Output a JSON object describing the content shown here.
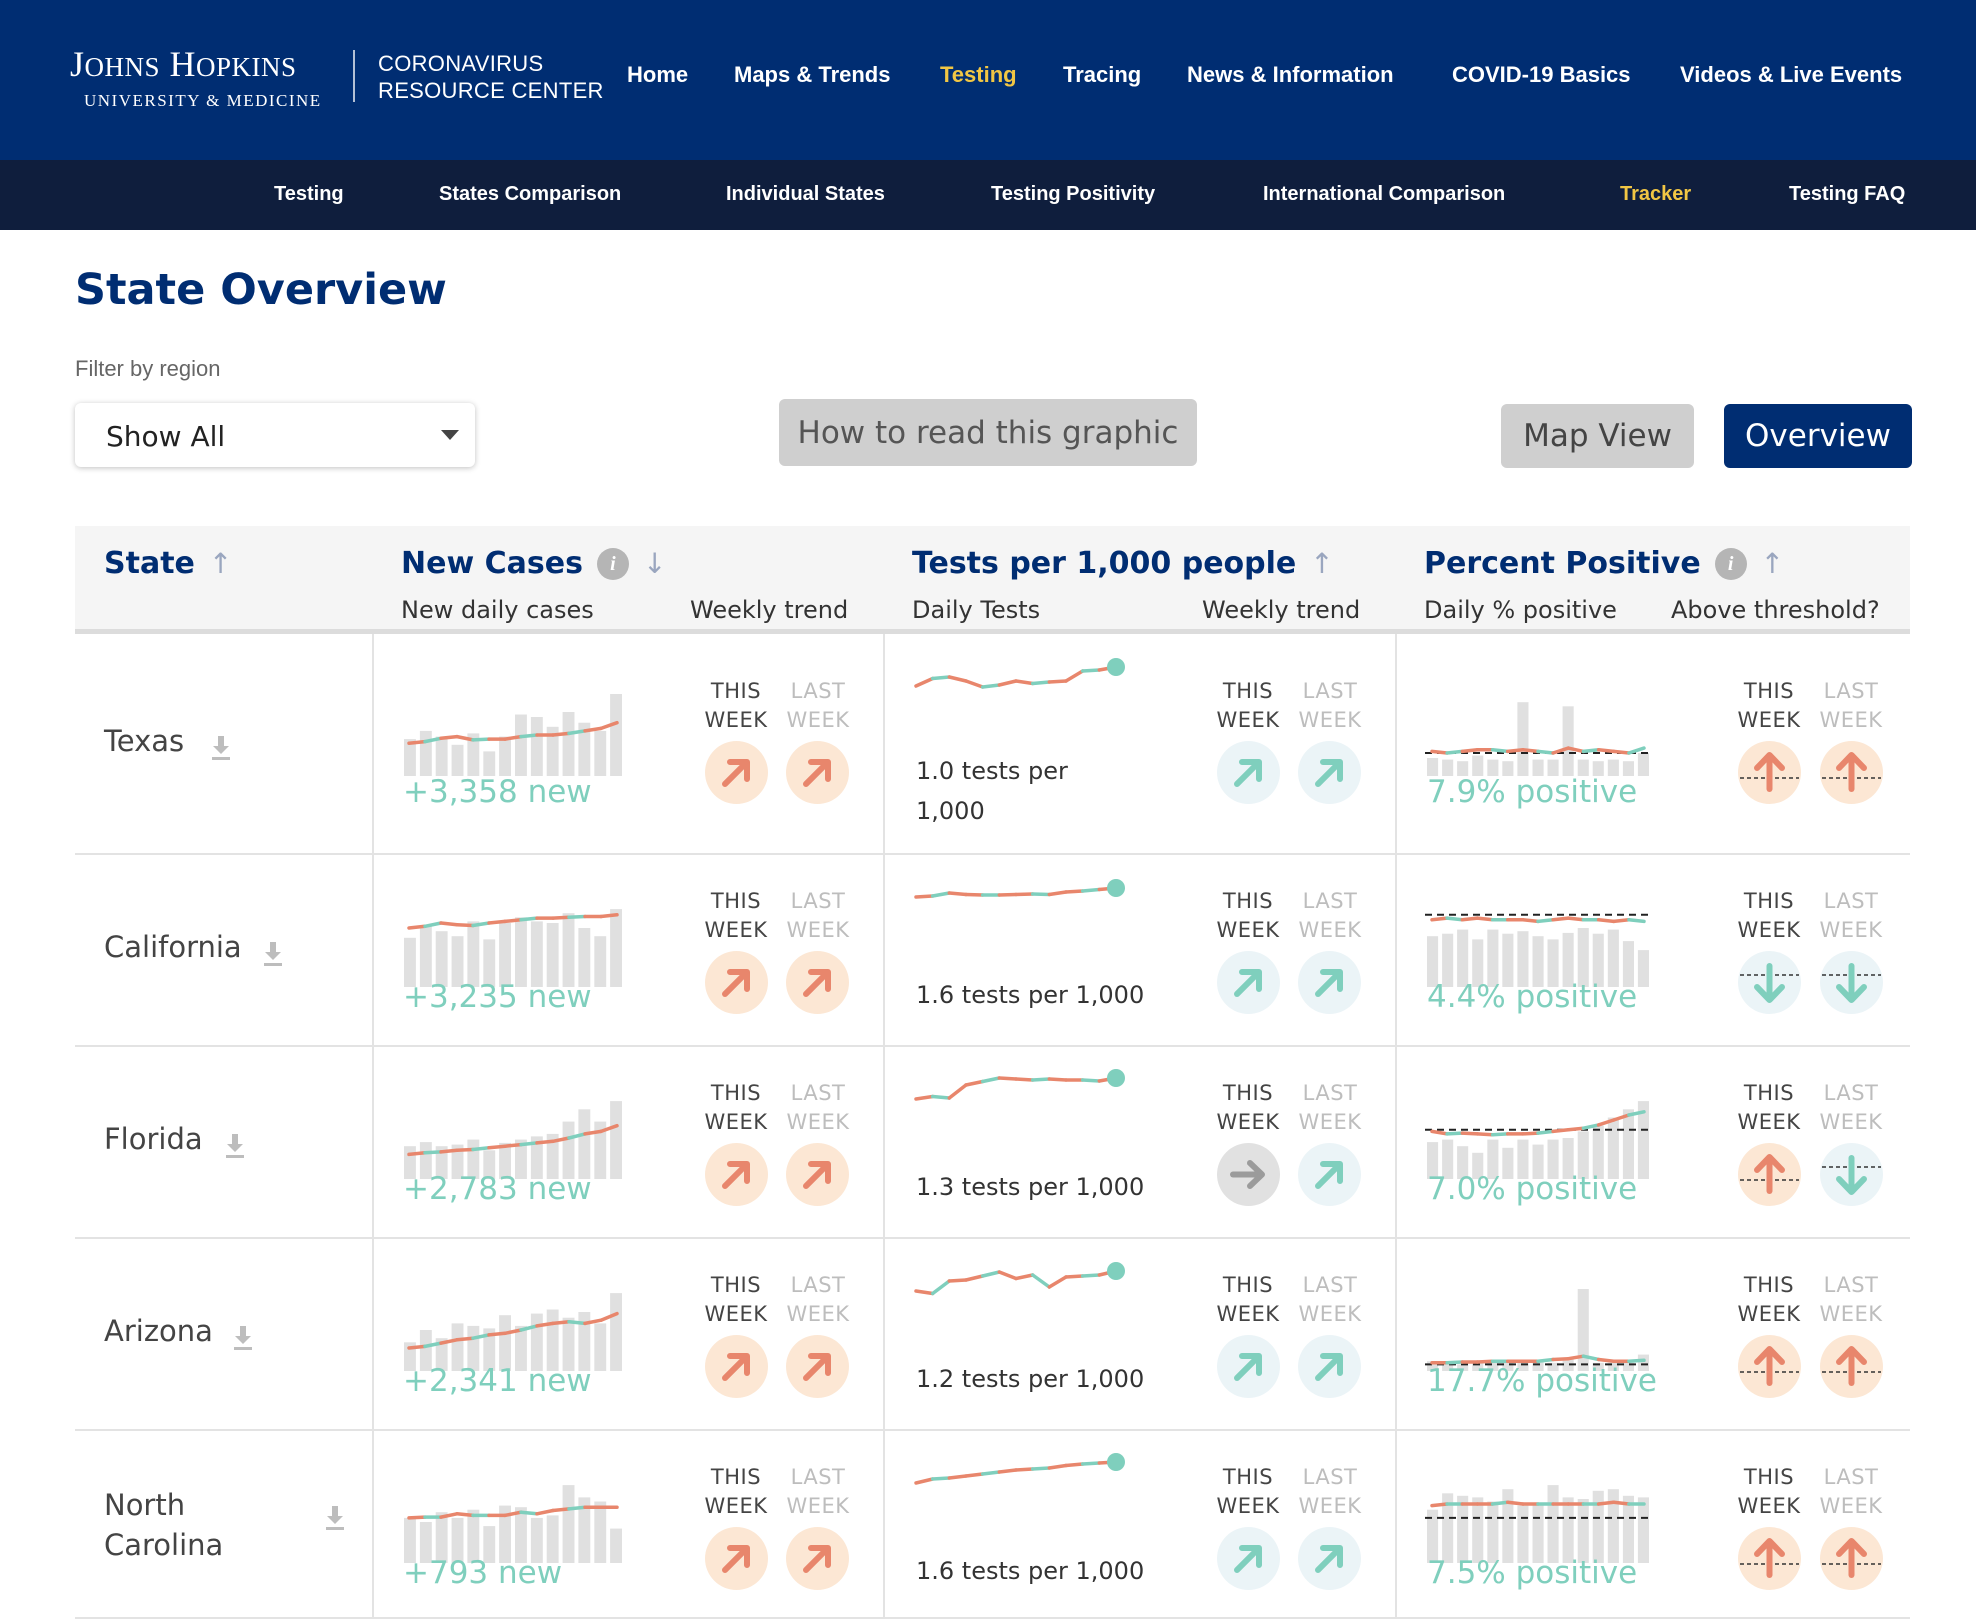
{
  "logo": {
    "line1": "Johns Hopkins",
    "line2": "UNIVERSITY & MEDICINE"
  },
  "resource_center": {
    "line1": "CORONAVIRUS",
    "line2": "RESOURCE CENTER"
  },
  "main_nav": [
    {
      "label": "Home",
      "active": false
    },
    {
      "label": "Maps & Trends",
      "active": false
    },
    {
      "label": "Testing",
      "active": true
    },
    {
      "label": "Tracing",
      "active": false
    },
    {
      "label": "News & Information",
      "active": false
    },
    {
      "label": "COVID-19 Basics",
      "active": false
    },
    {
      "label": "Videos & Live Events",
      "active": false
    }
  ],
  "sub_nav": [
    {
      "label": "Testing",
      "active": false
    },
    {
      "label": "States Comparison",
      "active": false
    },
    {
      "label": "Individual States",
      "active": false
    },
    {
      "label": "Testing Positivity",
      "active": false
    },
    {
      "label": "International Comparison",
      "active": false
    },
    {
      "label": "Tracker",
      "active": true
    },
    {
      "label": "Testing FAQ",
      "active": false
    }
  ],
  "page": {
    "title": "State Overview",
    "filter_label": "Filter by region",
    "filter_value": "Show All",
    "howto_label": "How to read this graphic",
    "map_view_label": "Map View",
    "overview_label": "Overview"
  },
  "table": {
    "headers": {
      "state": "State",
      "new_cases": "New Cases",
      "new_cases_sub": "New daily cases",
      "new_cases_trend": "Weekly trend",
      "tests": "Tests per 1,000 people",
      "tests_sub": "Daily Tests",
      "tests_trend": "Weekly trend",
      "positive": "Percent Positive",
      "positive_sub": "Daily % positive",
      "positive_trend": "Above threshold?"
    },
    "this_week": "THIS WEEK",
    "last_week": "LAST WEEK",
    "rows": [
      {
        "state": "Texas",
        "cases": "+3,358 new",
        "tests": "1.0 tests per 1,000",
        "positive": "7.9% positive",
        "case_badges": [
          "up-orange",
          "up-orange"
        ],
        "test_badges": [
          "up-teal",
          "up-teal"
        ],
        "pos_badges": [
          "above",
          "above"
        ]
      },
      {
        "state": "California",
        "cases": "+3,235 new",
        "tests": "1.6 tests per 1,000",
        "positive": "4.4% positive",
        "case_badges": [
          "up-orange",
          "up-orange"
        ],
        "test_badges": [
          "up-teal",
          "up-teal"
        ],
        "pos_badges": [
          "below",
          "below"
        ]
      },
      {
        "state": "Florida",
        "cases": "+2,783 new",
        "tests": "1.3 tests per 1,000",
        "positive": "7.0% positive",
        "case_badges": [
          "up-orange",
          "up-orange"
        ],
        "test_badges": [
          "flat-gray",
          "up-teal"
        ],
        "pos_badges": [
          "above",
          "below"
        ]
      },
      {
        "state": "Arizona",
        "cases": "+2,341 new",
        "tests": "1.2 tests per 1,000",
        "positive": "17.7% positive",
        "case_badges": [
          "up-orange",
          "up-orange"
        ],
        "test_badges": [
          "up-teal",
          "up-teal"
        ],
        "pos_badges": [
          "above",
          "above"
        ]
      },
      {
        "state": "North Carolina",
        "cases": "+793 new",
        "tests": "1.6 tests per 1,000",
        "positive": "7.5% positive",
        "case_badges": [
          "up-orange",
          "up-orange"
        ],
        "test_badges": [
          "up-teal",
          "up-teal"
        ],
        "pos_badges": [
          "above",
          "above"
        ]
      }
    ]
  },
  "sparklines": {
    "cases_bars": [
      [
        0.45,
        0.55,
        0.48,
        0.38,
        0.52,
        0.3,
        0.48,
        0.75,
        0.72,
        0.6,
        0.78,
        0.65,
        0.55,
        1.0
      ],
      [
        0.6,
        0.75,
        0.68,
        0.62,
        0.8,
        0.58,
        0.78,
        0.85,
        0.8,
        0.78,
        0.9,
        0.72,
        0.62,
        0.95
      ],
      [
        0.4,
        0.45,
        0.4,
        0.42,
        0.48,
        0.35,
        0.44,
        0.48,
        0.52,
        0.55,
        0.7,
        0.85,
        0.7,
        0.95
      ],
      [
        0.35,
        0.5,
        0.4,
        0.58,
        0.55,
        0.52,
        0.68,
        0.55,
        0.7,
        0.75,
        0.65,
        0.72,
        0.58,
        0.95
      ],
      [
        0.55,
        0.5,
        0.62,
        0.55,
        0.65,
        0.45,
        0.7,
        0.68,
        0.55,
        0.58,
        0.95,
        0.8,
        0.75,
        0.42
      ]
    ],
    "cases_line": [
      [
        0.4,
        0.42,
        0.46,
        0.48,
        0.44,
        0.45,
        0.45,
        0.48,
        0.5,
        0.5,
        0.52,
        0.55,
        0.58,
        0.65
      ],
      [
        0.72,
        0.74,
        0.78,
        0.76,
        0.75,
        0.78,
        0.8,
        0.82,
        0.84,
        0.84,
        0.85,
        0.86,
        0.86,
        0.88
      ],
      [
        0.3,
        0.32,
        0.33,
        0.35,
        0.36,
        0.38,
        0.4,
        0.42,
        0.44,
        0.46,
        0.5,
        0.55,
        0.58,
        0.65
      ],
      [
        0.28,
        0.3,
        0.34,
        0.38,
        0.4,
        0.44,
        0.46,
        0.5,
        0.55,
        0.58,
        0.6,
        0.58,
        0.62,
        0.7
      ],
      [
        0.55,
        0.56,
        0.56,
        0.6,
        0.58,
        0.58,
        0.58,
        0.62,
        0.6,
        0.64,
        0.66,
        0.68,
        0.68,
        0.68
      ]
    ],
    "tests_line": [
      [
        0.4,
        0.55,
        0.58,
        0.5,
        0.38,
        0.42,
        0.5,
        0.45,
        0.48,
        0.5,
        0.7,
        0.72,
        0.78
      ],
      [
        0.5,
        0.52,
        0.58,
        0.55,
        0.54,
        0.54,
        0.55,
        0.56,
        0.55,
        0.6,
        0.62,
        0.65,
        0.68
      ],
      [
        0.3,
        0.35,
        0.32,
        0.58,
        0.65,
        0.72,
        0.7,
        0.68,
        0.7,
        0.68,
        0.68,
        0.66,
        0.72
      ],
      [
        0.3,
        0.25,
        0.5,
        0.52,
        0.6,
        0.68,
        0.55,
        0.62,
        0.38,
        0.58,
        0.6,
        0.62,
        0.7
      ],
      [
        0.3,
        0.38,
        0.4,
        0.44,
        0.48,
        0.52,
        0.56,
        0.58,
        0.6,
        0.65,
        0.68,
        0.7,
        0.72
      ]
    ],
    "pos_bars": [
      [
        0.22,
        0.2,
        0.18,
        0.25,
        0.2,
        0.18,
        0.9,
        0.2,
        0.2,
        0.85,
        0.2,
        0.18,
        0.2,
        0.18,
        0.28
      ],
      [
        0.62,
        0.65,
        0.7,
        0.58,
        0.7,
        0.65,
        0.68,
        0.62,
        0.58,
        0.66,
        0.72,
        0.65,
        0.7,
        0.56,
        0.45
      ],
      [
        0.45,
        0.48,
        0.4,
        0.32,
        0.48,
        0.38,
        0.48,
        0.42,
        0.48,
        0.5,
        0.58,
        0.65,
        0.75,
        0.85,
        0.95
      ],
      [
        0.12,
        0.1,
        0.08,
        0.1,
        0.12,
        0.1,
        0.1,
        0.12,
        0.1,
        0.15,
        1.0,
        0.1,
        0.1,
        0.1,
        0.2
      ],
      [
        0.65,
        0.85,
        0.82,
        0.8,
        0.75,
        0.9,
        0.7,
        0.72,
        0.95,
        0.8,
        0.78,
        0.88,
        0.9,
        0.82,
        0.8
      ]
    ],
    "pos_line": [
      [
        0.3,
        0.28,
        0.3,
        0.32,
        0.32,
        0.3,
        0.32,
        0.3,
        0.28,
        0.34,
        0.3,
        0.32,
        0.3,
        0.28,
        0.34
      ],
      [
        0.82,
        0.84,
        0.82,
        0.84,
        0.82,
        0.82,
        0.82,
        0.8,
        0.82,
        0.84,
        0.82,
        0.82,
        0.8,
        0.82,
        0.8
      ],
      [
        0.58,
        0.55,
        0.56,
        0.55,
        0.54,
        0.55,
        0.55,
        0.56,
        0.58,
        0.6,
        0.62,
        0.66,
        0.72,
        0.78,
        0.82
      ],
      [
        0.1,
        0.1,
        0.11,
        0.11,
        0.12,
        0.12,
        0.12,
        0.12,
        0.14,
        0.15,
        0.18,
        0.14,
        0.12,
        0.12,
        0.13
      ],
      [
        0.7,
        0.72,
        0.72,
        0.72,
        0.72,
        0.74,
        0.72,
        0.72,
        0.72,
        0.72,
        0.72,
        0.72,
        0.74,
        0.72,
        0.72
      ]
    ],
    "pos_threshold": [
      0.28,
      0.88,
      0.6,
      0.08,
      0.55
    ]
  },
  "colors": {
    "navy": "#002d72",
    "subnav": "#0f1e3d",
    "accent_yellow": "#f1c644",
    "teal": "#7fcfbd",
    "orange": "#e8866c",
    "bar_gray": "#e0e0e0"
  }
}
